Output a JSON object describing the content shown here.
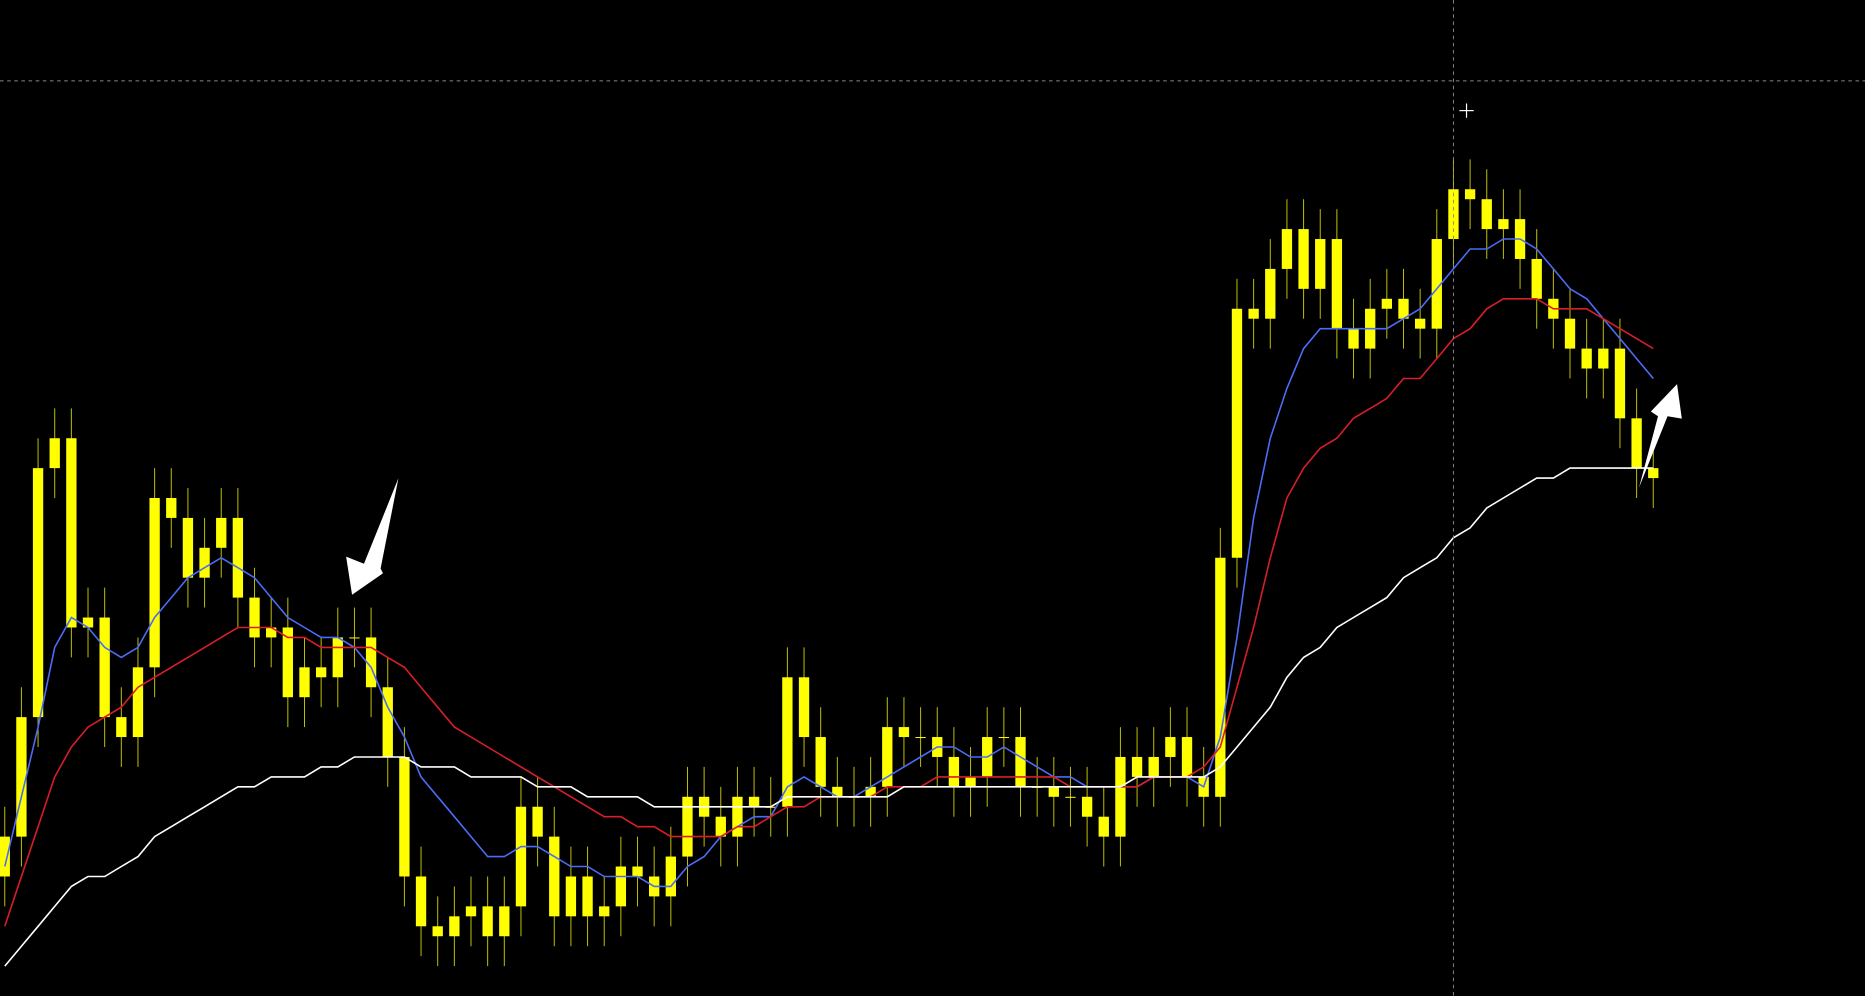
{
  "chart_data": {
    "type": "candlestick",
    "color": "#ffff00",
    "ylim": [
      0,
      100
    ],
    "open": [
      12,
      16,
      28,
      53,
      56,
      37,
      38,
      28,
      26,
      33,
      50,
      48,
      42,
      45,
      48,
      40,
      36,
      37,
      30,
      33,
      32,
      36,
      36,
      31,
      24,
      12,
      7,
      6,
      8,
      9,
      6,
      9,
      19,
      16,
      8,
      12,
      8,
      9,
      13,
      12,
      10,
      14,
      20,
      18,
      16,
      20,
      19,
      19,
      32,
      26,
      21,
      20,
      20,
      21,
      27,
      26,
      26,
      24,
      21,
      22,
      26,
      26,
      21,
      21,
      20,
      20,
      18,
      16,
      24,
      22,
      24,
      26,
      22,
      20,
      44,
      69,
      68,
      73,
      77,
      71,
      76,
      67,
      65,
      69,
      70,
      68,
      67,
      76,
      81,
      80,
      77,
      78,
      74,
      70,
      68,
      65,
      63,
      65,
      58,
      53
    ],
    "high": [
      19,
      31,
      56,
      59,
      59,
      41,
      41,
      31,
      36,
      53,
      53,
      51,
      48,
      51,
      51,
      43,
      40,
      40,
      36,
      36,
      39,
      39,
      39,
      34,
      27,
      15,
      10,
      11,
      12,
      12,
      12,
      22,
      22,
      19,
      15,
      15,
      12,
      16,
      16,
      15,
      17,
      23,
      23,
      21,
      23,
      23,
      22,
      35,
      35,
      29,
      24,
      23,
      24,
      30,
      30,
      29,
      29,
      27,
      25,
      29,
      29,
      29,
      24,
      24,
      23,
      23,
      21,
      27,
      27,
      27,
      29,
      29,
      25,
      47,
      72,
      72,
      76,
      80,
      80,
      79,
      79,
      70,
      72,
      73,
      73,
      71,
      79,
      84,
      84,
      83,
      81,
      81,
      77,
      73,
      71,
      68,
      68,
      68,
      61,
      56
    ],
    "low": [
      9,
      13,
      25,
      50,
      34,
      34,
      25,
      23,
      23,
      30,
      45,
      39,
      39,
      42,
      37,
      33,
      33,
      27,
      27,
      29,
      29,
      33,
      28,
      21,
      9,
      4,
      3,
      3,
      5,
      3,
      3,
      6,
      13,
      5,
      5,
      5,
      5,
      6,
      9,
      7,
      7,
      11,
      15,
      13,
      13,
      16,
      16,
      16,
      23,
      18,
      17,
      17,
      17,
      18,
      23,
      23,
      21,
      18,
      18,
      19,
      23,
      18,
      18,
      17,
      17,
      15,
      13,
      13,
      19,
      19,
      21,
      19,
      17,
      17,
      41,
      65,
      65,
      70,
      68,
      68,
      64,
      62,
      62,
      66,
      65,
      64,
      64,
      73,
      77,
      74,
      74,
      71,
      67,
      65,
      62,
      60,
      60,
      55,
      50,
      49
    ],
    "close": [
      16,
      28,
      53,
      56,
      37,
      38,
      28,
      26,
      33,
      50,
      48,
      42,
      45,
      48,
      40,
      36,
      37,
      30,
      33,
      32,
      36,
      36,
      31,
      24,
      12,
      7,
      6,
      8,
      9,
      6,
      9,
      19,
      16,
      8,
      12,
      8,
      9,
      13,
      12,
      10,
      14,
      20,
      18,
      16,
      20,
      19,
      19,
      32,
      26,
      21,
      20,
      20,
      21,
      27,
      26,
      26,
      24,
      21,
      22,
      26,
      26,
      21,
      21,
      20,
      20,
      18,
      16,
      24,
      22,
      24,
      26,
      22,
      20,
      44,
      69,
      68,
      73,
      77,
      71,
      76,
      67,
      65,
      69,
      70,
      68,
      67,
      76,
      81,
      80,
      77,
      78,
      74,
      70,
      68,
      65,
      63,
      65,
      58,
      53,
      52
    ],
    "lines": [
      {
        "color": "#4a6cf7",
        "values": [
          13,
          20,
          27,
          35,
          38,
          37,
          35,
          34,
          35,
          38,
          40,
          42,
          43,
          44,
          43,
          42,
          40,
          38,
          37,
          36,
          36,
          35,
          33,
          29,
          26,
          22,
          20,
          18,
          16,
          14,
          14,
          15,
          15,
          14,
          13,
          13,
          12,
          12,
          12,
          11,
          11,
          13,
          14,
          16,
          17,
          18,
          18,
          21,
          22,
          21,
          20,
          20,
          21,
          22,
          23,
          24,
          25,
          25,
          24,
          24,
          25,
          24,
          23,
          22,
          22,
          21,
          21,
          21,
          21,
          22,
          22,
          22,
          21,
          26,
          36,
          48,
          56,
          61,
          65,
          67,
          67,
          67,
          67,
          67,
          68,
          69,
          71,
          73,
          75,
          75,
          76,
          76,
          75,
          73,
          71,
          70,
          68,
          66,
          64,
          62
        ]
      },
      {
        "color": "#d81e28",
        "values": [
          7,
          12,
          17,
          22,
          25,
          27,
          28,
          29,
          31,
          32,
          33,
          34,
          35,
          36,
          37,
          37,
          37,
          36,
          36,
          35,
          35,
          35,
          35,
          34,
          33,
          31,
          29,
          27,
          26,
          25,
          24,
          23,
          22,
          21,
          20,
          19,
          18,
          18,
          17,
          17,
          16,
          16,
          16,
          16,
          17,
          17,
          18,
          19,
          19,
          20,
          20,
          20,
          20,
          21,
          21,
          21,
          22,
          22,
          22,
          22,
          22,
          22,
          22,
          22,
          21,
          21,
          21,
          21,
          21,
          22,
          22,
          22,
          23,
          25,
          31,
          37,
          44,
          50,
          53,
          55,
          56,
          58,
          59,
          60,
          62,
          62,
          64,
          66,
          67,
          69,
          70,
          70,
          70,
          69,
          69,
          69,
          68,
          67,
          66,
          65
        ]
      },
      {
        "color": "#ffffff",
        "values": [
          3,
          5,
          7,
          9,
          11,
          12,
          12,
          13,
          14,
          16,
          17,
          18,
          19,
          20,
          21,
          21,
          22,
          22,
          22,
          23,
          23,
          24,
          24,
          24,
          24,
          23,
          23,
          23,
          22,
          22,
          22,
          22,
          21,
          21,
          21,
          20,
          20,
          20,
          20,
          19,
          19,
          19,
          19,
          19,
          19,
          19,
          19,
          20,
          20,
          20,
          20,
          20,
          20,
          20,
          21,
          21,
          21,
          21,
          21,
          21,
          21,
          21,
          21,
          21,
          21,
          21,
          21,
          21,
          22,
          22,
          22,
          22,
          22,
          23,
          25,
          27,
          29,
          32,
          34,
          35,
          37,
          38,
          39,
          40,
          42,
          43,
          44,
          46,
          47,
          49,
          50,
          51,
          52,
          52,
          53,
          53,
          53,
          53,
          53,
          53
        ]
      }
    ]
  }
}
